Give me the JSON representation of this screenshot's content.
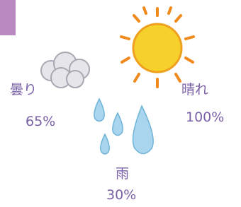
{
  "items": [
    {
      "label": "曇り",
      "value": "65%"
    },
    {
      "label": "晴れ",
      "value": "100%"
    },
    {
      "label": "雨",
      "value": "30%"
    }
  ]
}
